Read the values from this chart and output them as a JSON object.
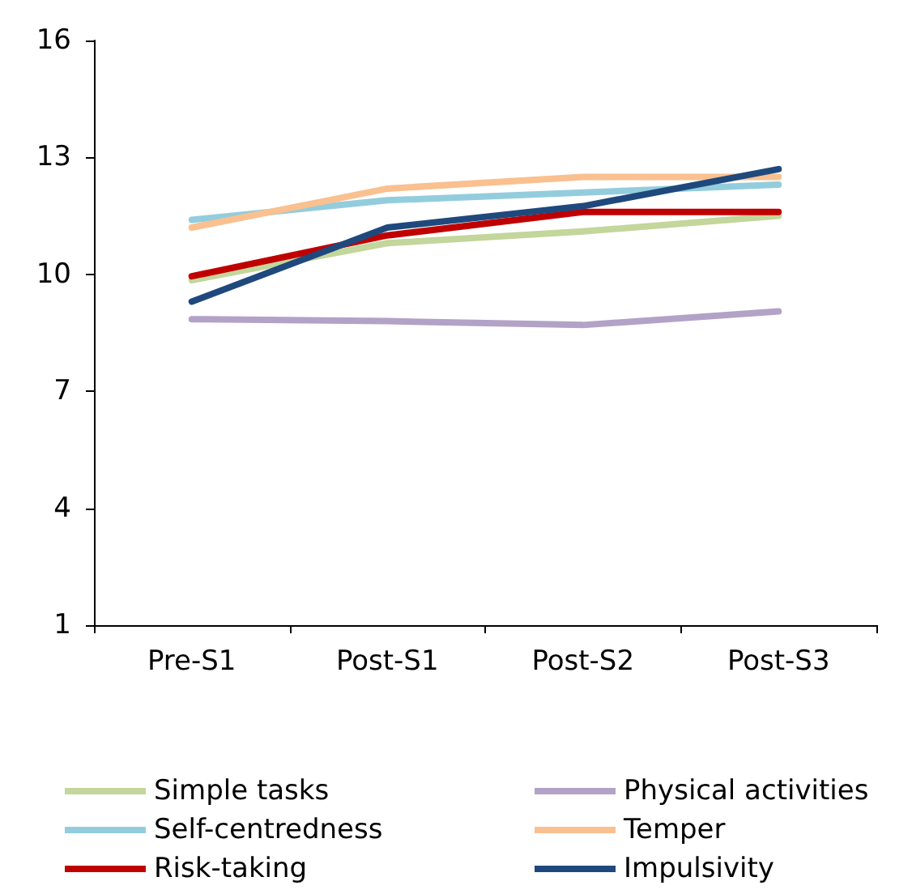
{
  "chart_data": {
    "type": "line",
    "categories": [
      "Pre-S1",
      "Post-S1",
      "Post-S2",
      "Post-S3"
    ],
    "ylim": [
      1,
      16
    ],
    "yticks": [
      1,
      4,
      7,
      10,
      13,
      16
    ],
    "grid": false,
    "legend": "bottom",
    "marker": "none",
    "line_style": "solid",
    "series": [
      {
        "name": "Simple tasks",
        "color": "#c3d69b",
        "values": [
          9.85,
          10.8,
          11.1,
          11.5
        ]
      },
      {
        "name": "Physical activities",
        "color": "#b3a2c7",
        "values": [
          8.85,
          8.8,
          8.7,
          9.05
        ]
      },
      {
        "name": "Self-centredness",
        "color": "#93cddd",
        "values": [
          11.4,
          11.9,
          12.1,
          12.3
        ]
      },
      {
        "name": "Temper",
        "color": "#fac090",
        "values": [
          11.2,
          12.2,
          12.5,
          12.5
        ]
      },
      {
        "name": "Risk-taking",
        "color": "#c00000",
        "values": [
          9.95,
          11.0,
          11.6,
          11.6
        ]
      },
      {
        "name": "Impulsivity",
        "color": "#1f497d",
        "values": [
          9.3,
          11.2,
          11.75,
          12.7
        ]
      }
    ]
  }
}
